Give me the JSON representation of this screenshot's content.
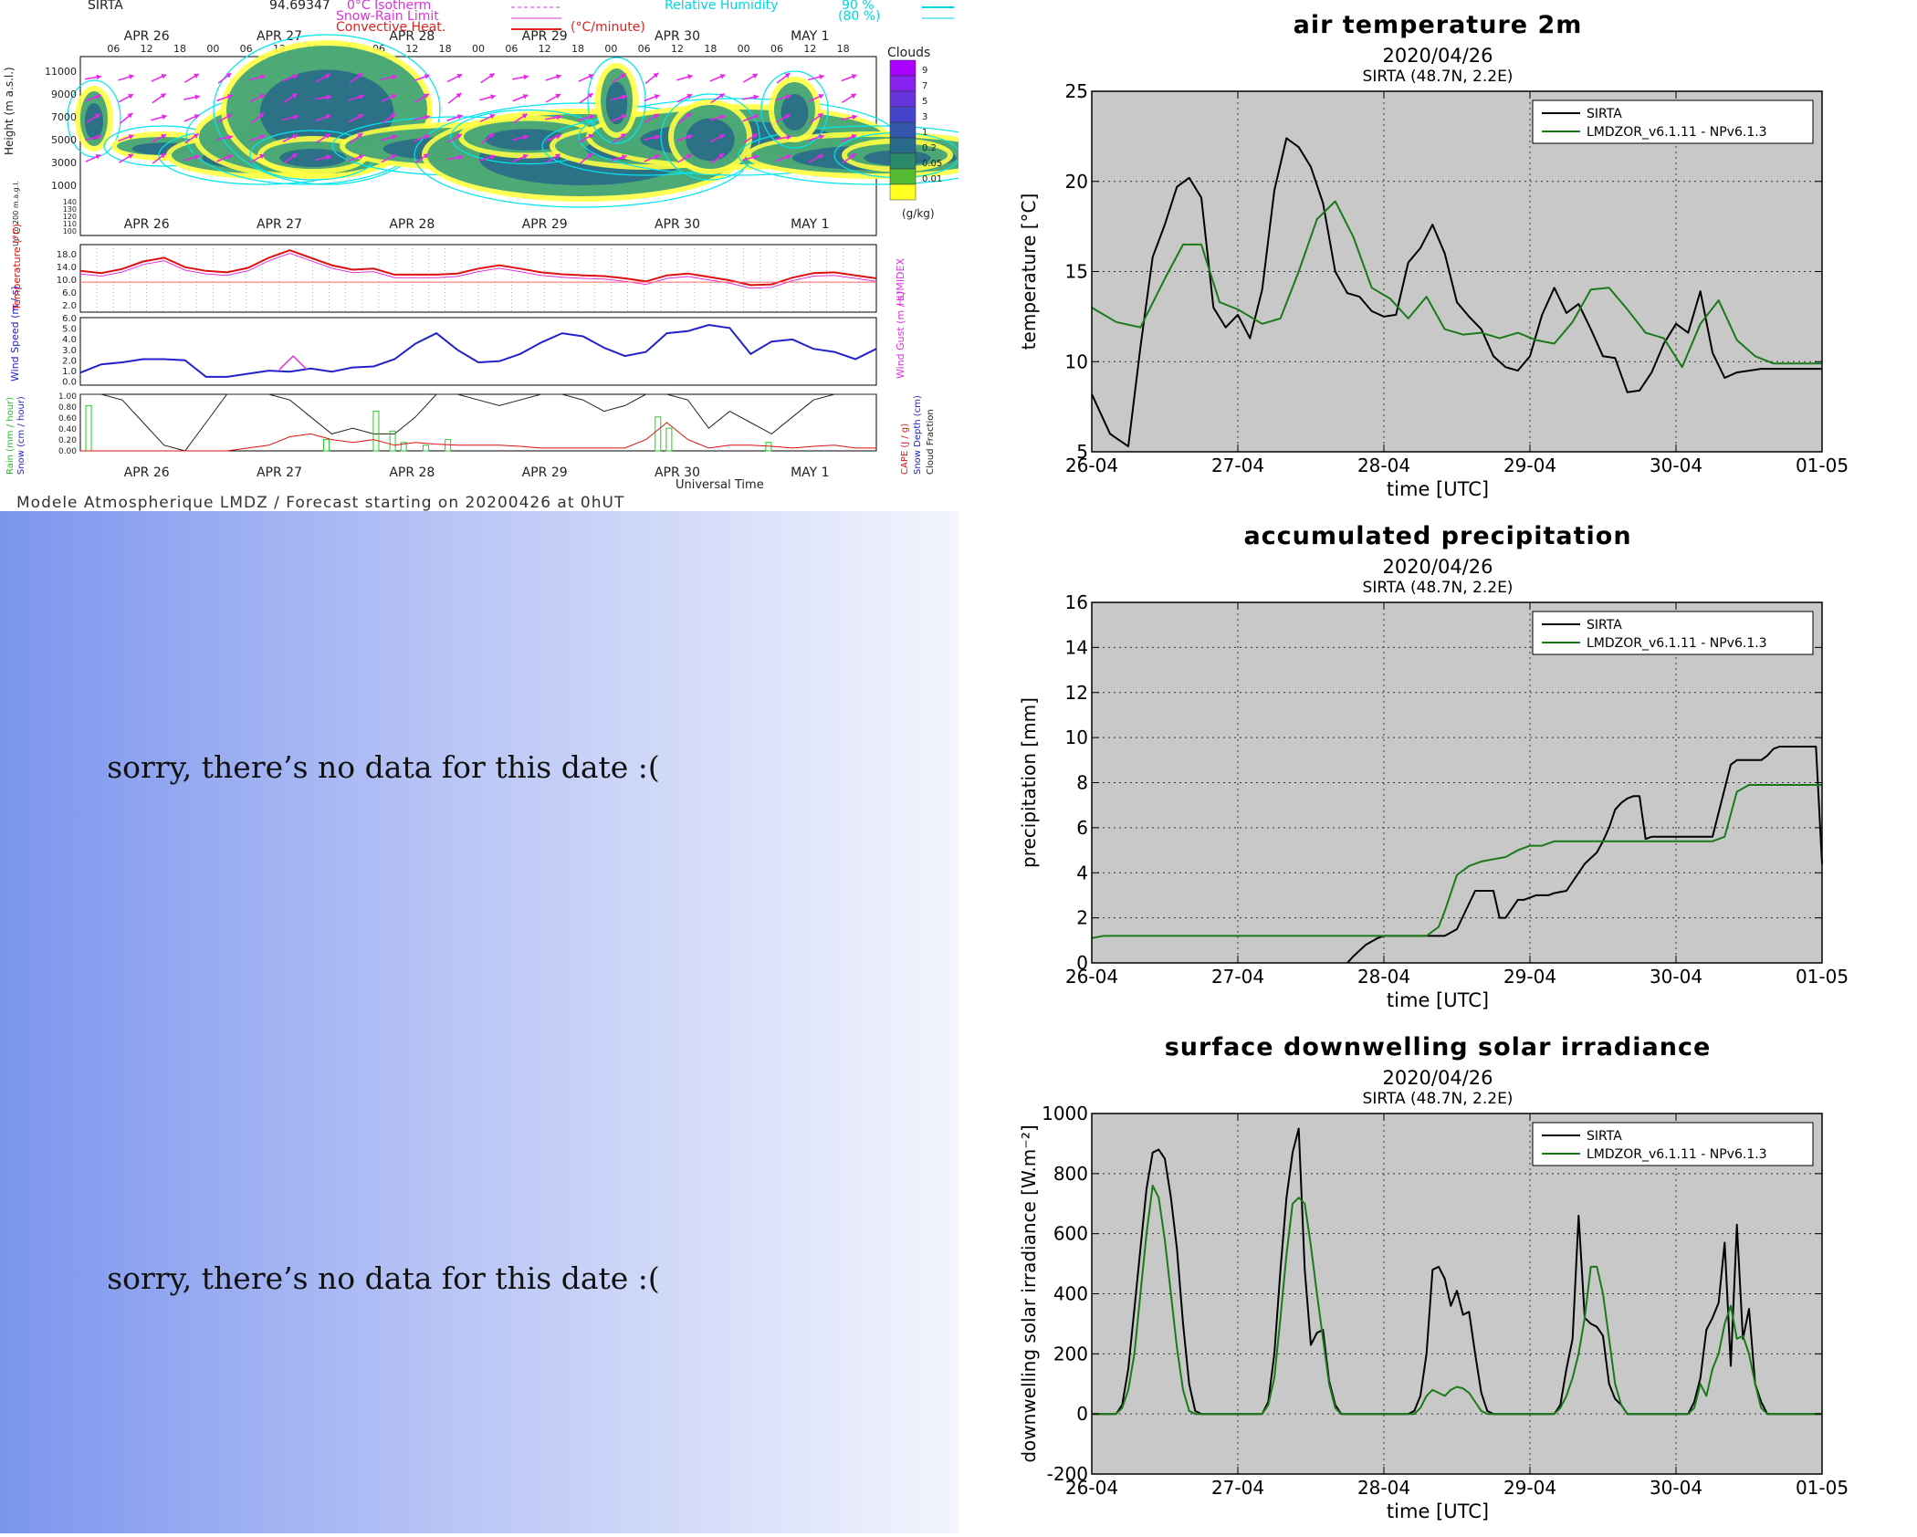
{
  "meteogram": {
    "station": "SIRTA",
    "top_value": "94.69347",
    "legend_top": [
      "0°C Isotherm",
      "Snow-Rain Limit",
      "Convective Heat."
    ],
    "legend_unit": "(°C/minute)",
    "rh_label": "Relative Humidity",
    "rh_values": [
      "90 %",
      "(80 %)"
    ],
    "days": [
      "APR 26",
      "APR 27",
      "APR 28",
      "APR 29",
      "APR 30",
      "MAY  1"
    ],
    "hours": [
      "06",
      "12",
      "18",
      "00"
    ],
    "height_label": "Height (m a.s.l.)",
    "height_ticks": [
      "11000",
      "9000",
      "7000",
      "5000",
      "3000",
      "1000"
    ],
    "low_label": "Up to 200 m.a.g.l.",
    "low_ticks": [
      "140",
      "130",
      "120",
      "110",
      "100"
    ],
    "clouds_title": "Clouds",
    "clouds_scale": [
      "9",
      "7",
      "5",
      "3",
      "1",
      "0.2",
      "0.05",
      "0.01"
    ],
    "clouds_unit": "(g/kg)",
    "temp_label": "Temperature (°C)",
    "temp_ticks": [
      "18.0",
      "14.0",
      "10.0",
      "6.0",
      "2.0"
    ],
    "humidex_label": "HUMIDEX",
    "wind_label": "Wind Speed (m / s)",
    "wind_ticks": [
      "6.0",
      "5.0",
      "4.0",
      "3.0",
      "2.0",
      "1.0",
      "0.0"
    ],
    "gust_label": "Wind Gust (m / s)",
    "rain_label": "Rain (mm / hour)",
    "snow_label": "Snow (cm / hour)",
    "rain_ticks": [
      "1.00",
      "0.80",
      "0.60",
      "0.40",
      "0.20",
      "0.00"
    ],
    "cape_label": "CAPE (J / g)",
    "snowdepth_label": "Snow Depth (cm)",
    "cloudfrac_label": "Cloud Fraction",
    "universal_time": "Universal Time",
    "footer": "Modele Atmospherique LMDZ / Forecast starting on 20200426 at 0hUT",
    "colors": {
      "rh": "#00e5ee",
      "wind": "#2222cc",
      "temp": "#dd1111",
      "isotherm": "#dd33dd",
      "cloud_fill": "#2a8a8a",
      "cloud_edge": "#ffff22"
    }
  },
  "no_data": [
    {
      "message": "sorry, there’s no data for this date  :("
    },
    {
      "message": "sorry, there’s no data for this date  :("
    }
  ],
  "chart_data": [
    {
      "type": "line",
      "title": "air temperature 2m",
      "date": "2020/04/26",
      "subtitle": "SIRTA (48.7N, 2.2E)",
      "xlabel": "time [UTC]",
      "ylabel": "temperature [°C]",
      "x_ticks": [
        "26-04",
        "27-04",
        "28-04",
        "29-04",
        "30-04",
        "01-05"
      ],
      "xlim": [
        0,
        120
      ],
      "y_ticks": [
        5,
        10,
        15,
        20,
        25
      ],
      "ylim": [
        5,
        25
      ],
      "grid": true,
      "legend": "top-right",
      "series": [
        {
          "name": "SIRTA",
          "color": "#000000",
          "x": [
            0,
            3,
            6,
            8,
            10,
            12,
            14,
            16,
            18,
            20,
            22,
            24,
            26,
            28,
            30,
            32,
            34,
            36,
            38,
            40,
            42,
            44,
            46,
            48,
            50,
            52,
            54,
            56,
            58,
            60,
            62,
            64,
            66,
            68,
            70,
            72,
            74,
            76,
            78,
            80,
            82,
            84,
            86,
            88,
            90,
            92,
            94,
            96,
            98,
            100,
            102,
            104,
            106,
            108,
            110,
            112,
            114,
            116,
            118,
            120
          ],
          "y": [
            8.2,
            6,
            5.3,
            10.8,
            15.8,
            17.6,
            19.7,
            20.2,
            19.1,
            13,
            11.9,
            12.6,
            11.3,
            14,
            19.5,
            22.4,
            21.9,
            20.8,
            18.8,
            15,
            13.8,
            13.6,
            12.8,
            12.5,
            12.6,
            15.5,
            16.3,
            17.6,
            16,
            13.3,
            12.5,
            11.8,
            10.3,
            9.7,
            9.5,
            10.3,
            12.6,
            14.1,
            12.7,
            13.2,
            11.8,
            10.3,
            10.2,
            8.3,
            8.4,
            9.4,
            11,
            12.1,
            11.6,
            13.9,
            10.5,
            9.1,
            9.4,
            9.5,
            9.6,
            9.6,
            9.6,
            9.6,
            9.6,
            9.6
          ]
        },
        {
          "name": "LMDZOR_v6.1.11 - NPv6.1.3",
          "color": "#1a7a1a",
          "x": [
            0,
            4,
            8,
            12,
            15,
            18,
            21,
            24,
            28,
            31,
            34,
            37,
            40,
            43,
            46,
            49,
            52,
            55,
            58,
            61,
            64,
            67,
            70,
            73,
            76,
            79,
            82,
            85,
            88,
            91,
            94,
            97,
            100,
            103,
            106,
            109,
            112,
            115,
            118,
            120
          ],
          "y": [
            13,
            12.2,
            11.9,
            14.6,
            16.5,
            16.5,
            13.3,
            12.9,
            12.1,
            12.4,
            15,
            17.9,
            18.9,
            16.9,
            14.1,
            13.5,
            12.4,
            13.6,
            11.8,
            11.5,
            11.6,
            11.3,
            11.6,
            11.2,
            11,
            12.2,
            14,
            14.1,
            12.9,
            11.6,
            11.3,
            9.7,
            12.1,
            13.4,
            11.2,
            10.3,
            9.9,
            9.9,
            9.9,
            9.9
          ]
        }
      ]
    },
    {
      "type": "line",
      "title": "accumulated precipitation",
      "date": "2020/04/26",
      "subtitle": "SIRTA (48.7N, 2.2E)",
      "xlabel": "time [UTC]",
      "ylabel": "precipitation [mm]",
      "x_ticks": [
        "26-04",
        "27-04",
        "28-04",
        "29-04",
        "30-04",
        "01-05"
      ],
      "xlim": [
        0,
        120
      ],
      "y_ticks": [
        0,
        2,
        4,
        6,
        8,
        10,
        12,
        14,
        16
      ],
      "ylim": [
        0,
        16
      ],
      "grid": true,
      "legend": "top-right",
      "series": [
        {
          "name": "SIRTA",
          "color": "#000000",
          "x": [
            42,
            43,
            45,
            47,
            48,
            52,
            57,
            58,
            60,
            63,
            64,
            65,
            66,
            67,
            68,
            69,
            70,
            71,
            73,
            75,
            76,
            78,
            81,
            83,
            84,
            85,
            86,
            87,
            88,
            89,
            90,
            91,
            92,
            94,
            96,
            98,
            100,
            101,
            102,
            105,
            106,
            108,
            110,
            111,
            112,
            113,
            114,
            116,
            118,
            119,
            120
          ],
          "y": [
            0,
            0.3,
            0.8,
            1.1,
            1.2,
            1.2,
            1.2,
            1.2,
            1.5,
            3.2,
            3.2,
            3.2,
            3.2,
            2,
            2,
            2.4,
            2.8,
            2.8,
            3,
            3,
            3.1,
            3.2,
            4.4,
            4.9,
            5.4,
            6,
            6.8,
            7.1,
            7.3,
            7.4,
            7.4,
            5.5,
            5.6,
            5.6,
            5.6,
            5.6,
            5.6,
            5.6,
            5.6,
            8.8,
            9,
            9,
            9,
            9.2,
            9.5,
            9.6,
            9.6,
            9.6,
            9.6,
            9.6,
            4.4
          ]
        },
        {
          "name": "LMDZOR_v6.1.11 - NPv6.1.3",
          "color": "#1a7a1a",
          "x": [
            0,
            2,
            10,
            20,
            30,
            40,
            50,
            55,
            57,
            58,
            60,
            62,
            64,
            66,
            68,
            70,
            72,
            74,
            76,
            78,
            80,
            84,
            88,
            90,
            92,
            94,
            96,
            98,
            100,
            102,
            104,
            106,
            108,
            110,
            112,
            114,
            116,
            118,
            120
          ],
          "y": [
            1.1,
            1.2,
            1.2,
            1.2,
            1.2,
            1.2,
            1.2,
            1.2,
            1.6,
            2.3,
            3.9,
            4.3,
            4.5,
            4.6,
            4.7,
            5,
            5.2,
            5.2,
            5.4,
            5.4,
            5.4,
            5.4,
            5.4,
            5.4,
            5.4,
            5.4,
            5.4,
            5.4,
            5.4,
            5.4,
            5.6,
            7.6,
            7.9,
            7.9,
            7.9,
            7.9,
            7.9,
            7.9,
            7.9
          ]
        }
      ]
    },
    {
      "type": "line",
      "title": "surface downwelling solar irradiance",
      "date": "2020/04/26",
      "subtitle": "SIRTA (48.7N, 2.2E)",
      "xlabel": "time [UTC]",
      "ylabel": "downwelling solar irradiance [W.m⁻²]",
      "x_ticks": [
        "26-04",
        "27-04",
        "28-04",
        "29-04",
        "30-04",
        "01-05"
      ],
      "xlim": [
        0,
        120
      ],
      "y_ticks": [
        -200,
        0,
        200,
        400,
        600,
        800,
        1000
      ],
      "ylim": [
        -200,
        1000
      ],
      "grid": true,
      "legend": "top-right",
      "series": [
        {
          "name": "SIRTA",
          "color": "#000000",
          "x": [
            0,
            4,
            5,
            6,
            7,
            8,
            9,
            10,
            11,
            12,
            13,
            14,
            15,
            16,
            17,
            18,
            19,
            28,
            29,
            30,
            31,
            32,
            33,
            34,
            35,
            36,
            37,
            38,
            39,
            40,
            41,
            42,
            43,
            52,
            53,
            54,
            55,
            56,
            57,
            58,
            59,
            60,
            61,
            62,
            63,
            64,
            65,
            66,
            76,
            77,
            78,
            79,
            80,
            81,
            82,
            83,
            84,
            85,
            86,
            87,
            88,
            89,
            90,
            98,
            99,
            100,
            101,
            102,
            103,
            104,
            105,
            106,
            107,
            108,
            109,
            110,
            111,
            112,
            113,
            114,
            115,
            120
          ],
          "y": [
            0,
            0,
            30,
            150,
            350,
            550,
            750,
            870,
            880,
            850,
            720,
            550,
            300,
            100,
            10,
            0,
            0,
            0,
            40,
            200,
            480,
            720,
            870,
            950,
            480,
            230,
            270,
            280,
            110,
            30,
            0,
            0,
            0,
            0,
            10,
            60,
            200,
            480,
            490,
            450,
            360,
            410,
            330,
            340,
            200,
            70,
            10,
            0,
            0,
            30,
            150,
            250,
            660,
            320,
            300,
            290,
            260,
            100,
            50,
            30,
            0,
            0,
            0,
            0,
            40,
            120,
            280,
            320,
            370,
            570,
            160,
            630,
            250,
            350,
            100,
            40,
            0,
            0,
            0,
            0,
            0,
            0
          ]
        },
        {
          "name": "LMDZOR_v6.1.11 - NPv6.1.3",
          "color": "#1a7a1a",
          "x": [
            0,
            4,
            5,
            6,
            7,
            8,
            9,
            10,
            11,
            12,
            13,
            14,
            15,
            16,
            17,
            18,
            19,
            28,
            29,
            30,
            31,
            32,
            33,
            34,
            35,
            36,
            37,
            38,
            39,
            40,
            41,
            42,
            43,
            52,
            53,
            54,
            55,
            56,
            57,
            58,
            59,
            60,
            61,
            62,
            63,
            64,
            65,
            66,
            76,
            77,
            78,
            79,
            80,
            81,
            82,
            83,
            84,
            85,
            86,
            87,
            88,
            89,
            90,
            98,
            99,
            100,
            101,
            102,
            103,
            104,
            105,
            106,
            107,
            108,
            109,
            110,
            111,
            112,
            113,
            114,
            115,
            120
          ],
          "y": [
            0,
            0,
            20,
            80,
            200,
            400,
            600,
            760,
            720,
            580,
            400,
            220,
            80,
            10,
            0,
            0,
            0,
            0,
            30,
            120,
            320,
            530,
            700,
            720,
            700,
            560,
            400,
            250,
            100,
            20,
            0,
            0,
            0,
            0,
            0,
            20,
            60,
            80,
            70,
            60,
            80,
            90,
            85,
            70,
            40,
            10,
            0,
            0,
            0,
            20,
            60,
            120,
            200,
            320,
            490,
            490,
            400,
            250,
            100,
            30,
            0,
            0,
            0,
            0,
            20,
            100,
            60,
            150,
            200,
            300,
            360,
            250,
            260,
            200,
            100,
            20,
            0,
            0,
            0,
            0,
            0,
            0
          ]
        }
      ]
    }
  ]
}
